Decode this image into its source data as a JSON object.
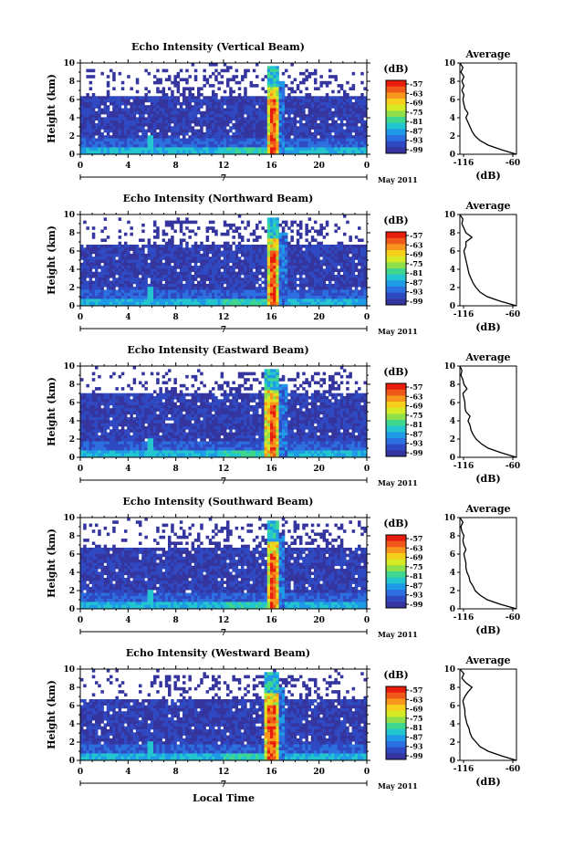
{
  "page": {
    "xlabel": "Local Time"
  },
  "chart_data": [
    {
      "type": "heatmap",
      "title": "Echo Intensity (Vertical Beam)",
      "ylabel": "Height (km)",
      "xlim": [
        0,
        24
      ],
      "ylim": [
        0,
        10
      ],
      "x_ticks": [
        "0",
        "4",
        "8",
        "12",
        "16",
        "20",
        "0"
      ],
      "y_ticks": [
        "0",
        "2",
        "4",
        "6",
        "8",
        "10"
      ],
      "date_label": "7",
      "month_label": "May 2011",
      "colorbar": {
        "unit": "(dB)",
        "ticks": [
          "-57",
          "-63",
          "-69",
          "-75",
          "-81",
          "-87",
          "-93",
          "-99"
        ],
        "colors": [
          "#e81c0d",
          "#f0571a",
          "#f7951c",
          "#f6cf1d",
          "#d7ea26",
          "#8fe04a",
          "#3fd68f",
          "#23c6cf",
          "#1f9ae6",
          "#2c6fe0",
          "#2f49c2",
          "#34359e"
        ]
      },
      "features": {
        "storm_hour": 16.1,
        "storm_width_h": 1.0,
        "background_top_km": 6.5,
        "sparse_top_km": 9.5
      },
      "average": {
        "title": "Average",
        "xlabel": "(dB)",
        "xlim": [
          -116,
          -60
        ],
        "x_ticks": [
          "-116",
          "-60"
        ],
        "y_ticks": [
          "0",
          "2",
          "4",
          "6",
          "8",
          "10"
        ],
        "profile": [
          [
            -60,
            0.0
          ],
          [
            -75,
            0.5
          ],
          [
            -88,
            1.0
          ],
          [
            -96,
            1.5
          ],
          [
            -101,
            2.0
          ],
          [
            -104,
            2.5
          ],
          [
            -106,
            3.0
          ],
          [
            -108,
            3.5
          ],
          [
            -110,
            4.0
          ],
          [
            -108,
            4.5
          ],
          [
            -111,
            5.0
          ],
          [
            -112,
            5.5
          ],
          [
            -113,
            6.0
          ],
          [
            -112,
            6.5
          ],
          [
            -114,
            7.0
          ],
          [
            -112,
            7.5
          ],
          [
            -114,
            8.0
          ],
          [
            -112,
            8.5
          ],
          [
            -115,
            9.0
          ],
          [
            -113,
            9.5
          ],
          [
            -116,
            10.0
          ]
        ]
      }
    },
    {
      "type": "heatmap",
      "title": "Echo Intensity (Northward Beam)",
      "ylabel": "Height (km)",
      "xlim": [
        0,
        24
      ],
      "ylim": [
        0,
        10
      ],
      "x_ticks": [
        "0",
        "4",
        "8",
        "12",
        "16",
        "20",
        "0"
      ],
      "y_ticks": [
        "0",
        "2",
        "4",
        "6",
        "8",
        "10"
      ],
      "date_label": "7",
      "month_label": "May 2011",
      "colorbar": {
        "unit": "(dB)",
        "ticks": [
          "-57",
          "-63",
          "-69",
          "-75",
          "-81",
          "-87",
          "-93",
          "-99"
        ],
        "colors": [
          "#e81c0d",
          "#f0571a",
          "#f7951c",
          "#f6cf1d",
          "#d7ea26",
          "#8fe04a",
          "#3fd68f",
          "#23c6cf",
          "#1f9ae6",
          "#2c6fe0",
          "#2f49c2",
          "#34359e"
        ]
      },
      "features": {
        "storm_hour": 16.2,
        "storm_width_h": 1.0,
        "background_top_km": 6.8,
        "sparse_top_km": 9.5
      },
      "average": {
        "title": "Average",
        "xlabel": "(dB)",
        "xlim": [
          -116,
          -60
        ],
        "x_ticks": [
          "-116",
          "-60"
        ],
        "y_ticks": [
          "0",
          "2",
          "4",
          "6",
          "8",
          "10"
        ],
        "profile": [
          [
            -60,
            0.0
          ],
          [
            -76,
            0.5
          ],
          [
            -89,
            1.0
          ],
          [
            -96,
            1.5
          ],
          [
            -100,
            2.0
          ],
          [
            -103,
            2.5
          ],
          [
            -105,
            3.0
          ],
          [
            -107,
            3.5
          ],
          [
            -108,
            4.0
          ],
          [
            -109,
            4.5
          ],
          [
            -110,
            5.0
          ],
          [
            -111,
            5.5
          ],
          [
            -112,
            6.0
          ],
          [
            -110,
            6.5
          ],
          [
            -110,
            7.0
          ],
          [
            -104,
            7.5
          ],
          [
            -110,
            8.0
          ],
          [
            -112,
            8.5
          ],
          [
            -114,
            9.0
          ],
          [
            -113,
            9.5
          ],
          [
            -116,
            10.0
          ]
        ]
      }
    },
    {
      "type": "heatmap",
      "title": "Echo Intensity (Eastward Beam)",
      "ylabel": "Height (km)",
      "xlim": [
        0,
        24
      ],
      "ylim": [
        0,
        10
      ],
      "x_ticks": [
        "0",
        "4",
        "8",
        "12",
        "16",
        "20",
        "0"
      ],
      "y_ticks": [
        "0",
        "2",
        "4",
        "6",
        "8",
        "10"
      ],
      "date_label": "7",
      "month_label": "May 2011",
      "colorbar": {
        "unit": "(dB)",
        "ticks": [
          "-57",
          "-63",
          "-69",
          "-75",
          "-81",
          "-87",
          "-93",
          "-99"
        ],
        "colors": [
          "#e81c0d",
          "#f0571a",
          "#f7951c",
          "#f6cf1d",
          "#d7ea26",
          "#8fe04a",
          "#3fd68f",
          "#23c6cf",
          "#1f9ae6",
          "#2c6fe0",
          "#2f49c2",
          "#34359e"
        ]
      },
      "features": {
        "storm_hour": 16.1,
        "storm_width_h": 1.1,
        "background_top_km": 7.0,
        "sparse_top_km": 9.5
      },
      "average": {
        "title": "Average",
        "xlabel": "(dB)",
        "xlim": [
          -116,
          -60
        ],
        "x_ticks": [
          "-116",
          "-60"
        ],
        "y_ticks": [
          "0",
          "2",
          "4",
          "6",
          "8",
          "10"
        ],
        "profile": [
          [
            -60,
            0.0
          ],
          [
            -75,
            0.5
          ],
          [
            -88,
            1.0
          ],
          [
            -95,
            1.5
          ],
          [
            -100,
            2.0
          ],
          [
            -103,
            2.5
          ],
          [
            -105,
            3.0
          ],
          [
            -106,
            3.5
          ],
          [
            -108,
            4.0
          ],
          [
            -106,
            4.5
          ],
          [
            -110,
            5.0
          ],
          [
            -111,
            5.5
          ],
          [
            -111,
            6.0
          ],
          [
            -112,
            6.5
          ],
          [
            -113,
            7.0
          ],
          [
            -109,
            7.5
          ],
          [
            -112,
            8.0
          ],
          [
            -113,
            8.5
          ],
          [
            -115,
            9.0
          ],
          [
            -114,
            9.5
          ],
          [
            -116,
            10.0
          ]
        ]
      }
    },
    {
      "type": "heatmap",
      "title": "Echo Intensity (Southward Beam)",
      "ylabel": "Height (km)",
      "xlim": [
        0,
        24
      ],
      "ylim": [
        0,
        10
      ],
      "x_ticks": [
        "0",
        "4",
        "8",
        "12",
        "16",
        "20",
        "0"
      ],
      "y_ticks": [
        "0",
        "2",
        "4",
        "6",
        "8",
        "10"
      ],
      "date_label": "7",
      "month_label": "May 2011",
      "colorbar": {
        "unit": "(dB)",
        "ticks": [
          "-57",
          "-63",
          "-69",
          "-75",
          "-81",
          "-87",
          "-93",
          "-99"
        ],
        "colors": [
          "#e81c0d",
          "#f0571a",
          "#f7951c",
          "#f6cf1d",
          "#d7ea26",
          "#8fe04a",
          "#3fd68f",
          "#23c6cf",
          "#1f9ae6",
          "#2c6fe0",
          "#2f49c2",
          "#34359e"
        ]
      },
      "features": {
        "storm_hour": 16.1,
        "storm_width_h": 1.0,
        "background_top_km": 6.8,
        "sparse_top_km": 9.5
      },
      "average": {
        "title": "Average",
        "xlabel": "(dB)",
        "xlim": [
          -116,
          -60
        ],
        "x_ticks": [
          "-116",
          "-60"
        ],
        "y_ticks": [
          "0",
          "2",
          "4",
          "6",
          "8",
          "10"
        ],
        "profile": [
          [
            -60,
            0.0
          ],
          [
            -76,
            0.5
          ],
          [
            -89,
            1.0
          ],
          [
            -96,
            1.5
          ],
          [
            -101,
            2.0
          ],
          [
            -103,
            2.5
          ],
          [
            -106,
            3.0
          ],
          [
            -107,
            3.5
          ],
          [
            -109,
            4.0
          ],
          [
            -110,
            4.5
          ],
          [
            -110,
            5.0
          ],
          [
            -111,
            5.5
          ],
          [
            -112,
            6.0
          ],
          [
            -110,
            6.5
          ],
          [
            -112,
            7.0
          ],
          [
            -113,
            7.5
          ],
          [
            -112,
            8.0
          ],
          [
            -114,
            8.5
          ],
          [
            -115,
            9.0
          ],
          [
            -113,
            9.5
          ],
          [
            -116,
            10.0
          ]
        ]
      }
    },
    {
      "type": "heatmap",
      "title": "Echo Intensity (Westward Beam)",
      "ylabel": "Height (km)",
      "xlim": [
        0,
        24
      ],
      "ylim": [
        0,
        10
      ],
      "x_ticks": [
        "0",
        "4",
        "8",
        "12",
        "16",
        "20",
        "0"
      ],
      "y_ticks": [
        "0",
        "2",
        "4",
        "6",
        "8",
        "10"
      ],
      "date_label": "7",
      "month_label": "May 2011",
      "colorbar": {
        "unit": "(dB)",
        "ticks": [
          "-57",
          "-63",
          "-69",
          "-75",
          "-81",
          "-87",
          "-93",
          "-99"
        ],
        "colors": [
          "#e81c0d",
          "#f0571a",
          "#f7951c",
          "#f6cf1d",
          "#d7ea26",
          "#8fe04a",
          "#3fd68f",
          "#23c6cf",
          "#1f9ae6",
          "#2c6fe0",
          "#2f49c2",
          "#34359e"
        ]
      },
      "features": {
        "storm_hour": 16.0,
        "storm_width_h": 1.1,
        "background_top_km": 6.6,
        "sparse_top_km": 9.5
      },
      "average": {
        "title": "Average",
        "xlabel": "(dB)",
        "xlim": [
          -116,
          -60
        ],
        "x_ticks": [
          "-116",
          "-60"
        ],
        "y_ticks": [
          "0",
          "2",
          "4",
          "6",
          "8",
          "10"
        ],
        "profile": [
          [
            -60,
            0.0
          ],
          [
            -75,
            0.5
          ],
          [
            -88,
            1.0
          ],
          [
            -96,
            1.5
          ],
          [
            -100,
            2.0
          ],
          [
            -104,
            2.5
          ],
          [
            -106,
            3.0
          ],
          [
            -107,
            3.5
          ],
          [
            -109,
            4.0
          ],
          [
            -110,
            4.5
          ],
          [
            -111,
            5.0
          ],
          [
            -111,
            5.5
          ],
          [
            -112,
            6.0
          ],
          [
            -113,
            6.5
          ],
          [
            -111,
            7.0
          ],
          [
            -108,
            7.5
          ],
          [
            -104,
            8.0
          ],
          [
            -110,
            8.5
          ],
          [
            -114,
            9.0
          ],
          [
            -112,
            9.5
          ],
          [
            -116,
            10.0
          ]
        ]
      }
    }
  ]
}
